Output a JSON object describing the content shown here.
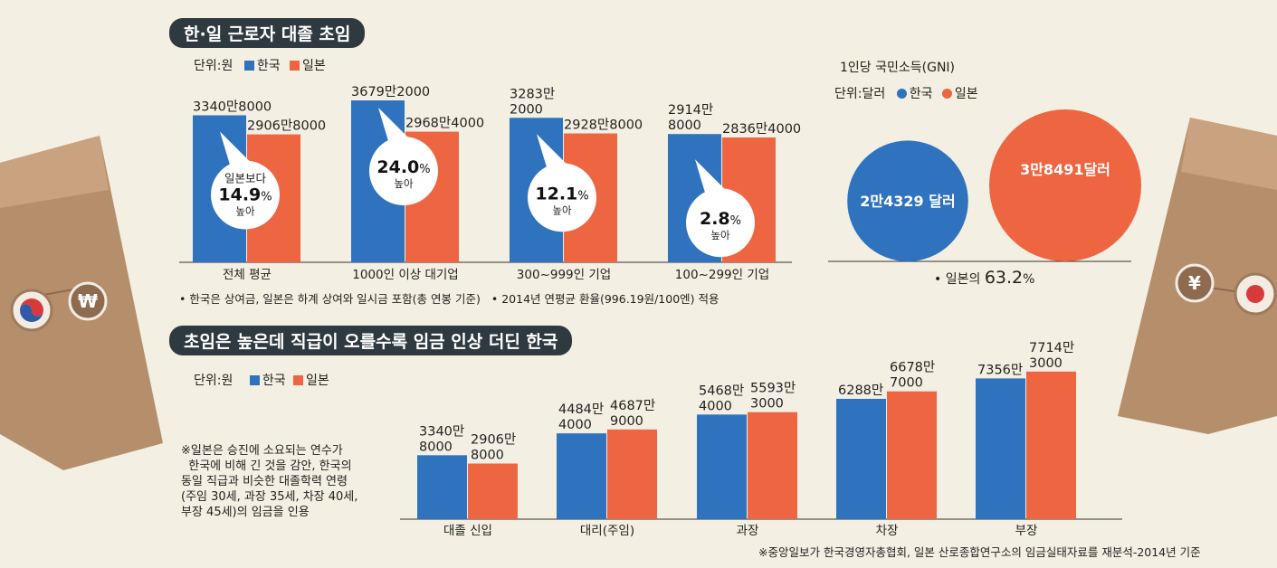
{
  "colors": {
    "korea": "#2f73bf",
    "japan": "#ee6542",
    "dark": "#2f3a40",
    "bg": "#f3efe2",
    "envelope": "#b58f6c"
  },
  "section1": {
    "title": "한·일 근로자 대졸 초임",
    "unit": "단위:원",
    "legend": [
      "한국",
      "일본"
    ],
    "notes": [
      "• 한국은 상여금, 일본은 하계 상여와 일시금 포함(총 연봉 기준)",
      "• 2014년 연평균 환율(996.19원/100엔) 적용"
    ]
  },
  "gni": {
    "title": "1인당 국민소득(GNI)",
    "unit": "단위:달러",
    "legend": [
      "한국",
      "일본"
    ],
    "korea_label": "2만4329 달러",
    "japan_label": "3만8491달러",
    "ratio_prefix": "• 일본의 ",
    "ratio_value": "63.2",
    "ratio_suffix": "%"
  },
  "section2": {
    "title": "초임은 높은데 직급이 오를수록 임금 인상 더딘 한국",
    "unit": "단위:원",
    "legend": [
      "한국",
      "일본"
    ],
    "note": [
      "※일본은 승진에 소요되는 연수가",
      "  한국에 비해 긴 것을 감안, 한국의",
      "동일 직급과 비슷한 대졸학력 연령",
      "(주임 30세, 과장 35세, 차장 40세,",
      "부장 45세)의 임금을 인용"
    ]
  },
  "source": "※중앙일보가 한국경영자총협회, 일본 산로종합연구소의 임금실태자료를 재분석-2014년 기준",
  "chart_data": [
    {
      "type": "bar",
      "title": "한·일 근로자 대졸 초임",
      "unit": "원",
      "categories": [
        "전체 평균",
        "1000인 이상 대기업",
        "300~999인 기업",
        "100~299인 기업"
      ],
      "series": [
        {
          "name": "한국",
          "values": [
            33408000,
            36792000,
            32832000,
            29148000
          ],
          "labels": [
            [
              "3340만8000"
            ],
            [
              "3679만2000"
            ],
            [
              "3283만",
              "2000"
            ],
            [
              "2914만",
              "8000"
            ]
          ]
        },
        {
          "name": "일본",
          "values": [
            29068000,
            29684000,
            29288000,
            28364000
          ],
          "labels": [
            [
              "2906만8000"
            ],
            [
              "2968만4000"
            ],
            [
              "2928만8000"
            ],
            [
              "2836만4000"
            ]
          ]
        }
      ],
      "annotations": [
        {
          "pre": "일본보다",
          "value": "14.9",
          "unit": "%",
          "post": "높아"
        },
        {
          "pre": "",
          "value": "24.0",
          "unit": "%",
          "post": "높아"
        },
        {
          "pre": "",
          "value": "12.1",
          "unit": "%",
          "post": "높아"
        },
        {
          "pre": "",
          "value": "2.8",
          "unit": "%",
          "post": "높아"
        }
      ]
    },
    {
      "type": "bubble",
      "title": "1인당 국민소득(GNI)",
      "unit": "달러",
      "categories": [
        "한국",
        "일본"
      ],
      "values": [
        24329,
        38491
      ]
    },
    {
      "type": "bar",
      "title": "초임은 높은데 직급이 오를수록 임금 인상 더딘 한국",
      "unit": "원",
      "categories": [
        "대졸 신입",
        "대리(주임)",
        "과장",
        "차장",
        "부장"
      ],
      "series": [
        {
          "name": "한국",
          "values": [
            33408000,
            44844000,
            54684000,
            62880000,
            73560000
          ],
          "labels": [
            [
              "3340만",
              "8000"
            ],
            [
              "4484만",
              "4000"
            ],
            [
              "5468만",
              "4000"
            ],
            [
              "6288만"
            ],
            [
              "7356만"
            ]
          ]
        },
        {
          "name": "일본",
          "values": [
            29068000,
            46879000,
            55933000,
            66787000,
            77143000
          ],
          "labels": [
            [
              "2906만",
              "8000"
            ],
            [
              "4687만",
              "9000"
            ],
            [
              "5593만",
              "3000"
            ],
            [
              "6678만",
              "7000"
            ],
            [
              "7714만",
              "3000"
            ]
          ]
        }
      ]
    }
  ]
}
